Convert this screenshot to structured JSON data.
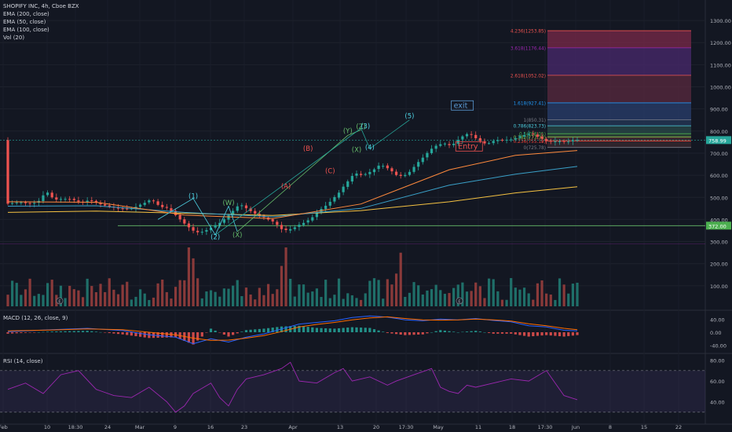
{
  "header": {
    "title": "SHOPIFY INC, 4h, Cboe BZX",
    "indicators": [
      "EMA (200, close)",
      "EMA (50, close)",
      "EMA (100, close)",
      "Vol (20)"
    ]
  },
  "panels": {
    "macd_label": "MACD (12, 26, close, 9)",
    "rsi_label": "RSI (14, close)"
  },
  "colors": {
    "background": "#131722",
    "up": "#26a69a",
    "down": "#ef5350",
    "ema200": "#f5c242",
    "ema50": "#ff8a3d",
    "ema100": "#3aa0c8",
    "rsi": "#9c27b0",
    "wave_count": "#4dd0e1",
    "wave_corr": "#ef5350",
    "wave_alt": "#66bb6a"
  },
  "chart_data": {
    "type": "candlestick",
    "title": "SHOPIFY INC, 4h, Cboe BZX",
    "ylim": [
      0,
      1350
    ],
    "y_ticks": [
      100,
      200,
      300,
      400,
      500,
      600,
      700,
      800,
      900,
      1000,
      1100,
      1200,
      1300
    ],
    "x_ticks": [
      "Feb",
      "10",
      "18:30",
      "24",
      "Mar",
      "9",
      "16",
      "23",
      "Apr",
      "13",
      "20",
      "17:30",
      "May",
      "11",
      "18",
      "17:30",
      "Jun",
      "8",
      "15",
      "22"
    ],
    "last_price_label": "758.99",
    "last_price": 758.99,
    "support_label": "372.00",
    "support": 372,
    "price_path": [
      [
        0,
        470
      ],
      [
        3,
        478
      ],
      [
        6,
        472
      ],
      [
        8,
        488
      ],
      [
        9,
        532
      ],
      [
        11,
        490
      ],
      [
        14,
        495
      ],
      [
        17,
        478
      ],
      [
        19,
        488
      ],
      [
        21,
        472
      ],
      [
        24,
        455
      ],
      [
        27,
        448
      ],
      [
        29,
        452
      ],
      [
        31,
        472
      ],
      [
        33,
        490
      ],
      [
        35,
        458
      ],
      [
        37,
        450
      ],
      [
        39,
        410
      ],
      [
        41,
        372
      ],
      [
        43,
        340
      ],
      [
        45,
        345
      ],
      [
        47,
        368
      ],
      [
        49,
        390
      ],
      [
        51,
        430
      ],
      [
        53,
        470
      ],
      [
        55,
        445
      ],
      [
        57,
        420
      ],
      [
        59,
        405
      ],
      [
        61,
        385
      ],
      [
        63,
        348
      ],
      [
        65,
        360
      ],
      [
        67,
        380
      ],
      [
        69,
        400
      ],
      [
        71,
        440
      ],
      [
        73,
        470
      ],
      [
        75,
        510
      ],
      [
        77,
        560
      ],
      [
        79,
        610
      ],
      [
        81,
        600
      ],
      [
        83,
        620
      ],
      [
        85,
        650
      ],
      [
        87,
        625
      ],
      [
        89,
        595
      ],
      [
        91,
        605
      ],
      [
        93,
        650
      ],
      [
        95,
        690
      ],
      [
        97,
        730
      ],
      [
        99,
        745
      ],
      [
        101,
        735
      ],
      [
        103,
        770
      ],
      [
        105,
        790
      ],
      [
        107,
        760
      ],
      [
        109,
        740
      ],
      [
        111,
        760
      ],
      [
        113,
        758
      ],
      [
        115,
        765
      ],
      [
        117,
        780
      ],
      [
        119,
        790
      ],
      [
        121,
        770
      ],
      [
        123,
        750
      ],
      [
        125,
        755
      ],
      [
        127,
        750
      ],
      [
        129,
        759
      ]
    ],
    "ema_50": [
      [
        0,
        480
      ],
      [
        20,
        478
      ],
      [
        40,
        420
      ],
      [
        60,
        404
      ],
      [
        80,
        470
      ],
      [
        100,
        625
      ],
      [
        115,
        690
      ],
      [
        129,
        712
      ]
    ],
    "ema_100": [
      [
        0,
        460
      ],
      [
        20,
        462
      ],
      [
        40,
        432
      ],
      [
        60,
        412
      ],
      [
        80,
        450
      ],
      [
        100,
        555
      ],
      [
        115,
        605
      ],
      [
        129,
        640
      ]
    ],
    "ema_200": [
      [
        0,
        432
      ],
      [
        20,
        438
      ],
      [
        40,
        428
      ],
      [
        60,
        418
      ],
      [
        80,
        440
      ],
      [
        100,
        480
      ],
      [
        115,
        520
      ],
      [
        129,
        548
      ]
    ],
    "fib_levels": [
      {
        "label": "4.236(1253.85)",
        "value": 1253.85,
        "color": "#ef5350"
      },
      {
        "label": "3.618(1176.44)",
        "value": 1176.44,
        "color": "#9c27b0"
      },
      {
        "label": "2.618(1052.02)",
        "value": 1052.02,
        "color": "#ef5350"
      },
      {
        "label": "1.618(927.41)",
        "value": 927.41,
        "color": "#2196f3"
      },
      {
        "label": "1(850.31)",
        "value": 850.31,
        "color": "#787b86"
      },
      {
        "label": "0.786(823.73)",
        "value": 823.73,
        "color": "#4dd0e1"
      },
      {
        "label": "0.5(788.05)",
        "value": 788.05,
        "color": "#4caf50"
      },
      {
        "label": "0.382(773.38)",
        "value": 773.38,
        "color": "#8bc34a"
      },
      {
        "label": "0.236(755.19)",
        "value": 755.19,
        "color": "#f44336"
      },
      {
        "label": "0(725.78)",
        "value": 725.78,
        "color": "#787b86"
      }
    ],
    "annotations": [
      {
        "text": "(1)",
        "x": 42,
        "y": 495,
        "color": "#4dd0e1"
      },
      {
        "text": "(2)",
        "x": 47,
        "y": 310,
        "color": "#4dd0e1"
      },
      {
        "text": "(W)",
        "x": 50,
        "y": 465,
        "color": "#66bb6a"
      },
      {
        "text": "(X)",
        "x": 52,
        "y": 320,
        "color": "#66bb6a"
      },
      {
        "text": "(A)",
        "x": 63,
        "y": 540,
        "color": "#ef5350"
      },
      {
        "text": "(B)",
        "x": 68,
        "y": 710,
        "color": "#ef5350"
      },
      {
        "text": "(C)",
        "x": 73,
        "y": 610,
        "color": "#ef5350"
      },
      {
        "text": "(Y)",
        "x": 77,
        "y": 790,
        "color": "#66bb6a"
      },
      {
        "text": "(X)",
        "x": 79,
        "y": 705,
        "color": "#66bb6a"
      },
      {
        "text": "(Z)",
        "x": 80,
        "y": 810,
        "color": "#66bb6a"
      },
      {
        "text": "(3)",
        "x": 81,
        "y": 812,
        "color": "#4dd0e1"
      },
      {
        "text": "(4)",
        "x": 82,
        "y": 715,
        "color": "#4dd0e1"
      },
      {
        "text": "(5)",
        "x": 91,
        "y": 858,
        "color": "#4dd0e1"
      },
      {
        "text": "exit",
        "x": 101,
        "y": 905,
        "color": "#5b9bd5"
      },
      {
        "text": "Entry",
        "x": 102,
        "y": 720,
        "color": "#ef5350"
      }
    ]
  },
  "macd": {
    "y_ticks": [
      "40.00",
      "0.00",
      "-40.00"
    ],
    "ylim": [
      -60,
      60
    ],
    "macd_line": [
      [
        0,
        2
      ],
      [
        10,
        8
      ],
      [
        18,
        12
      ],
      [
        26,
        5
      ],
      [
        32,
        -8
      ],
      [
        38,
        -15
      ],
      [
        42,
        -35
      ],
      [
        46,
        -20
      ],
      [
        50,
        -30
      ],
      [
        54,
        -15
      ],
      [
        58,
        -5
      ],
      [
        62,
        10
      ],
      [
        66,
        25
      ],
      [
        70,
        30
      ],
      [
        74,
        35
      ],
      [
        78,
        45
      ],
      [
        82,
        50
      ],
      [
        86,
        46
      ],
      [
        90,
        38
      ],
      [
        94,
        35
      ],
      [
        98,
        40
      ],
      [
        102,
        38
      ],
      [
        106,
        42
      ],
      [
        110,
        36
      ],
      [
        114,
        32
      ],
      [
        118,
        20
      ],
      [
        122,
        16
      ],
      [
        126,
        6
      ],
      [
        129,
        4
      ]
    ],
    "signal_line": [
      [
        0,
        4
      ],
      [
        10,
        7
      ],
      [
        18,
        10
      ],
      [
        26,
        8
      ],
      [
        32,
        0
      ],
      [
        38,
        -8
      ],
      [
        42,
        -18
      ],
      [
        46,
        -25
      ],
      [
        50,
        -24
      ],
      [
        54,
        -18
      ],
      [
        58,
        -10
      ],
      [
        62,
        2
      ],
      [
        66,
        16
      ],
      [
        70,
        24
      ],
      [
        74,
        30
      ],
      [
        78,
        38
      ],
      [
        82,
        44
      ],
      [
        86,
        47
      ],
      [
        90,
        42
      ],
      [
        94,
        38
      ],
      [
        98,
        37
      ],
      [
        102,
        38
      ],
      [
        106,
        40
      ],
      [
        110,
        38
      ],
      [
        114,
        34
      ],
      [
        118,
        26
      ],
      [
        122,
        20
      ],
      [
        126,
        12
      ],
      [
        129,
        8
      ]
    ]
  },
  "rsi": {
    "y_ticks": [
      "80.00",
      "60.00",
      "40.00"
    ],
    "ylim": [
      20,
      85
    ],
    "upper": 70,
    "lower": 30,
    "values": [
      [
        0,
        52
      ],
      [
        4,
        58
      ],
      [
        8,
        48
      ],
      [
        12,
        66
      ],
      [
        16,
        70
      ],
      [
        20,
        52
      ],
      [
        24,
        46
      ],
      [
        28,
        44
      ],
      [
        32,
        54
      ],
      [
        36,
        40
      ],
      [
        38,
        30
      ],
      [
        40,
        36
      ],
      [
        42,
        48
      ],
      [
        46,
        58
      ],
      [
        48,
        44
      ],
      [
        50,
        36
      ],
      [
        52,
        52
      ],
      [
        54,
        62
      ],
      [
        58,
        66
      ],
      [
        62,
        72
      ],
      [
        64,
        78
      ],
      [
        66,
        60
      ],
      [
        70,
        58
      ],
      [
        74,
        68
      ],
      [
        76,
        72
      ],
      [
        78,
        60
      ],
      [
        82,
        64
      ],
      [
        86,
        56
      ],
      [
        88,
        60
      ],
      [
        92,
        66
      ],
      [
        96,
        72
      ],
      [
        98,
        54
      ],
      [
        100,
        50
      ],
      [
        102,
        48
      ],
      [
        104,
        56
      ],
      [
        106,
        54
      ],
      [
        110,
        58
      ],
      [
        114,
        62
      ],
      [
        118,
        60
      ],
      [
        122,
        70
      ],
      [
        124,
        58
      ],
      [
        126,
        46
      ],
      [
        129,
        42
      ]
    ]
  }
}
